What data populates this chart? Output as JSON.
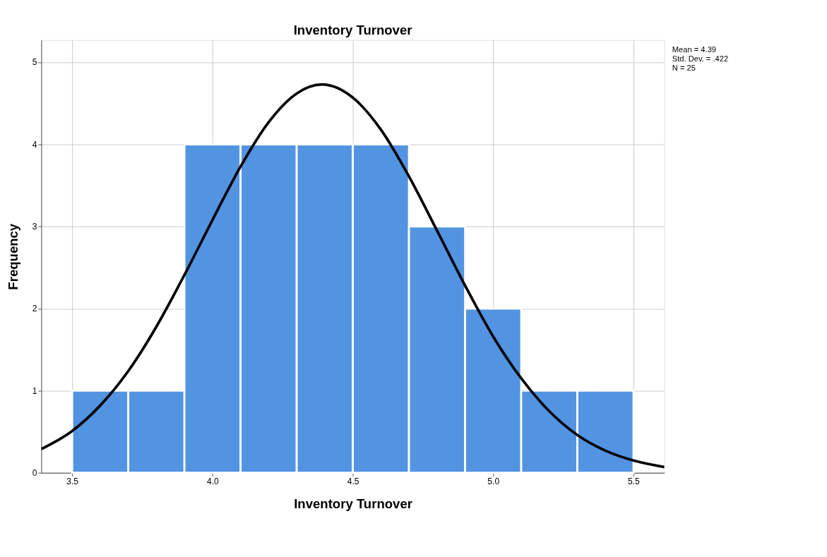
{
  "chart_data": {
    "type": "histogram",
    "title": "Inventory Turnover",
    "xlabel": "Inventory Turnover",
    "ylabel": "Frequency",
    "bins": [
      3.5,
      3.7,
      3.9,
      4.1,
      4.3,
      4.5,
      4.7,
      4.9,
      5.1,
      5.3,
      5.5
    ],
    "values": [
      1,
      1,
      4,
      4,
      4,
      4,
      3,
      2,
      1,
      1
    ],
    "color": "#5294e2",
    "series": [
      {
        "type": "line",
        "color": "#000000",
        "x": [
          3.39,
          3.5,
          3.6,
          3.7,
          3.8,
          3.9,
          4.0,
          4.1,
          4.2,
          4.3,
          4.39,
          4.5,
          4.6,
          4.7,
          4.8,
          4.9,
          5.0,
          5.1,
          5.2,
          5.3,
          5.4,
          5.5,
          5.61
        ],
        "values": [
          0.29,
          0.51,
          0.82,
          1.24,
          1.78,
          2.41,
          3.08,
          3.73,
          4.27,
          4.62,
          4.73,
          4.57,
          4.18,
          3.61,
          2.95,
          2.28,
          1.66,
          1.15,
          0.75,
          0.46,
          0.27,
          0.15,
          0.07
        ]
      }
    ],
    "xlim": [
      3.39,
      5.61
    ],
    "ylim": [
      0,
      5.27
    ],
    "xticks": [
      3.5,
      {
        "value": 4,
        "label": "4.0"
      },
      4.5,
      {
        "value": 5,
        "label": "5.0"
      },
      5.5
    ],
    "yticks": [
      0,
      1,
      2,
      3,
      4,
      5
    ],
    "grid": true,
    "annotations": [
      "Mean = 4.39",
      "Std. Dev. = .422",
      "N = 25"
    ]
  }
}
